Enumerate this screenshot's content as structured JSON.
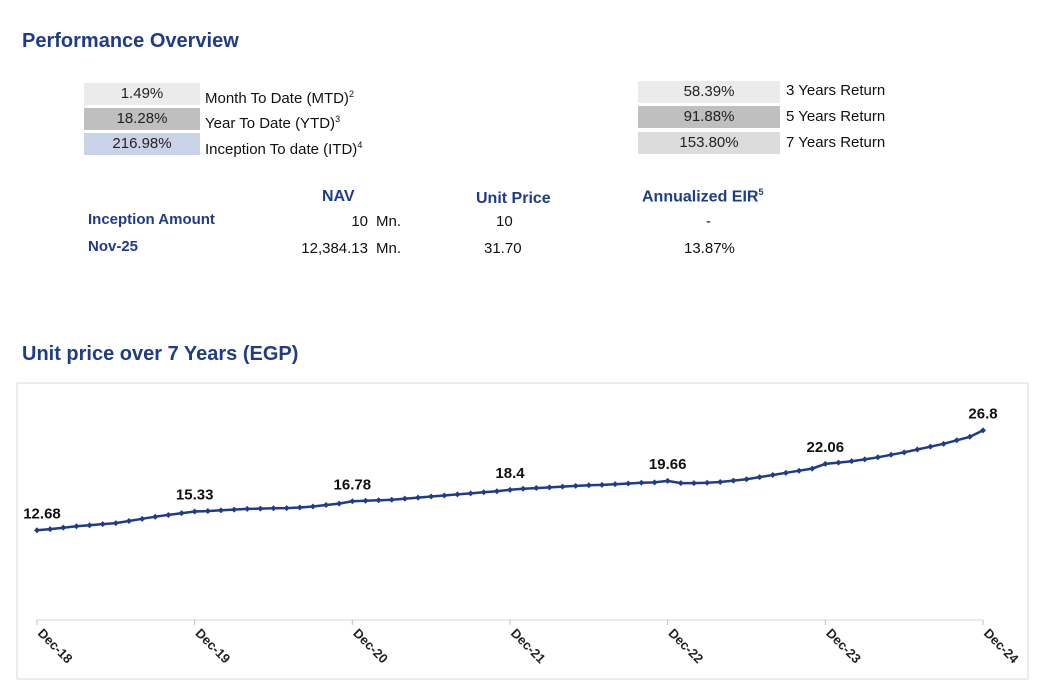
{
  "title": "Performance Overview",
  "returns_left": [
    {
      "value": "1.49%",
      "label": "Month To Date (MTD)",
      "note": "2"
    },
    {
      "value": "18.28%",
      "label": "Year To Date (YTD)",
      "note": "3"
    },
    {
      "value": "216.98%",
      "label": "Inception To date (ITD)",
      "note": "4"
    }
  ],
  "returns_right": [
    {
      "value": "58.39%",
      "label": "3 Years Return"
    },
    {
      "value": "91.88%",
      "label": "5 Years Return"
    },
    {
      "value": "153.80%",
      "label": "7 Years Return"
    }
  ],
  "nav_table": {
    "headers": [
      "NAV",
      "Unit Price",
      "Annualized EIR"
    ],
    "header_note": "5",
    "rows": [
      [
        "Inception Amount",
        "10",
        "Mn.",
        "10",
        "-"
      ],
      [
        "Nov-25",
        "12,384.13",
        "Mn.",
        "31.70",
        "13.87%"
      ]
    ]
  },
  "chart_data": {
    "type": "line",
    "title": "Unit price over 7 Years (EGP)",
    "color": "#1f3c88",
    "ylim": [
      0,
      33.5
    ],
    "categories": [
      "Dec-18",
      null,
      null,
      null,
      null,
      null,
      null,
      null,
      null,
      null,
      null,
      null,
      "Dec-19",
      null,
      null,
      null,
      null,
      null,
      null,
      null,
      null,
      null,
      null,
      null,
      "Dec-20",
      null,
      null,
      null,
      null,
      null,
      null,
      null,
      null,
      null,
      null,
      null,
      "Dec-21",
      null,
      null,
      null,
      null,
      null,
      null,
      null,
      null,
      null,
      null,
      null,
      "Dec-22",
      null,
      null,
      null,
      null,
      null,
      null,
      null,
      null,
      null,
      null,
      null,
      "Dec-23",
      null,
      null,
      null,
      null,
      null,
      null,
      null,
      null,
      null,
      null,
      null,
      "Dec-24"
    ],
    "values": [
      12.68,
      12.85,
      13.05,
      13.25,
      13.4,
      13.55,
      13.7,
      14.0,
      14.3,
      14.6,
      14.85,
      15.1,
      15.33,
      15.4,
      15.5,
      15.6,
      15.7,
      15.75,
      15.8,
      15.82,
      15.9,
      16.05,
      16.25,
      16.45,
      16.78,
      16.85,
      16.92,
      17.0,
      17.15,
      17.3,
      17.45,
      17.6,
      17.75,
      17.9,
      18.05,
      18.2,
      18.4,
      18.55,
      18.65,
      18.75,
      18.85,
      18.95,
      19.05,
      19.1,
      19.2,
      19.3,
      19.4,
      19.45,
      19.66,
      19.35,
      19.35,
      19.4,
      19.5,
      19.7,
      19.9,
      20.2,
      20.5,
      20.8,
      21.1,
      21.4,
      22.06,
      22.25,
      22.45,
      22.7,
      23.0,
      23.35,
      23.7,
      24.1,
      24.5,
      24.9,
      25.4,
      25.9,
      26.8
    ]
  }
}
